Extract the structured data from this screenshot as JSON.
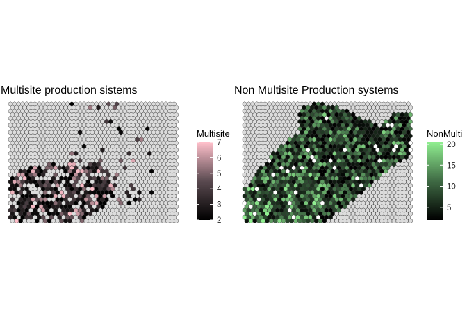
{
  "chart_data": [
    {
      "type": "heatmap",
      "title": "Multisite production sistems",
      "legend": {
        "title": "Multisite",
        "ticks": [
          2,
          3,
          4,
          5,
          6,
          7
        ],
        "range": [
          2,
          7
        ],
        "colors": {
          "low": "#000000",
          "mid": "#5a4a50",
          "high": "#ffc0cb"
        },
        "placement": "right"
      },
      "grid": {
        "cols": 41,
        "rows": 34
      },
      "empty_fill": "#dcdcdc"
    },
    {
      "type": "heatmap",
      "title": "Non Multisite Production systems",
      "legend": {
        "title": "NonMulti",
        "ticks": [
          5,
          10,
          15,
          20
        ],
        "range": [
          2,
          20.5
        ],
        "colors": {
          "low": "#000000",
          "mid": "#3f6a44",
          "high": "#90ee90"
        },
        "placement": "right"
      },
      "grid": {
        "cols": 41,
        "rows": 34
      },
      "empty_fill": "#dcdcdc"
    }
  ]
}
